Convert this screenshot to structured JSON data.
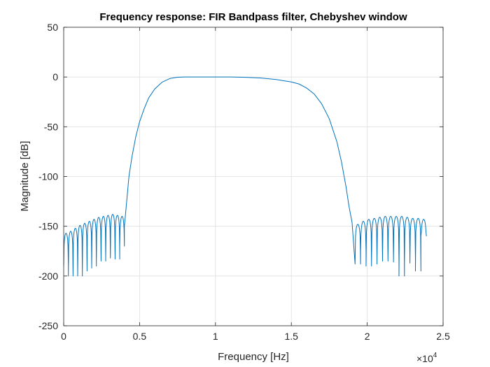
{
  "chart_data": {
    "type": "line",
    "title": "Frequency response: FIR Bandpass filter, Chebyshev window",
    "xlabel": "Frequency [Hz]",
    "ylabel": "Magnitude [dB]",
    "xlim": [
      0,
      25000
    ],
    "ylim": [
      -250,
      50
    ],
    "x_multiplier_label": "×10",
    "x_multiplier_exp": "4",
    "x_ticks": [
      0,
      5000,
      10000,
      15000,
      20000,
      25000
    ],
    "x_tick_labels": [
      "0",
      "0.5",
      "1",
      "1.5",
      "2",
      "2.5"
    ],
    "y_ticks": [
      50,
      0,
      -50,
      -100,
      -150,
      -200,
      -250
    ],
    "y_tick_labels": [
      "50",
      "0",
      "-50",
      "-100",
      "-150",
      "-200",
      "-250"
    ],
    "grid": true,
    "series": [
      {
        "color": "#0072BD",
        "passband": [
          [
            4000,
            -150
          ],
          [
            4150,
            -125
          ],
          [
            4300,
            -100
          ],
          [
            4500,
            -80
          ],
          [
            4750,
            -60
          ],
          [
            5000,
            -45
          ],
          [
            5300,
            -32
          ],
          [
            5600,
            -21
          ],
          [
            6000,
            -12
          ],
          [
            6500,
            -5
          ],
          [
            7000,
            -1.5
          ],
          [
            7500,
            -0.2
          ],
          [
            8000,
            0
          ],
          [
            9000,
            0
          ],
          [
            10000,
            0
          ],
          [
            11000,
            0
          ],
          [
            12000,
            -0.3
          ],
          [
            13000,
            -1
          ],
          [
            14000,
            -2.5
          ],
          [
            15000,
            -5
          ],
          [
            15500,
            -7
          ],
          [
            16000,
            -11
          ],
          [
            16500,
            -17
          ],
          [
            17000,
            -27
          ],
          [
            17500,
            -42
          ],
          [
            18000,
            -65
          ],
          [
            18300,
            -85
          ],
          [
            18600,
            -110
          ],
          [
            18800,
            -130
          ],
          [
            19000,
            -146
          ]
        ],
        "left_stopband": {
          "x_start": 0,
          "x_end": 4000,
          "lobes": [
            {
              "peak": -157,
              "null": -190
            },
            {
              "peak": -155,
              "null": -200
            },
            {
              "peak": -152,
              "null": -199
            },
            {
              "peak": -149,
              "null": -200
            },
            {
              "peak": -147,
              "null": -195
            },
            {
              "peak": -145,
              "null": -192
            },
            {
              "peak": -143,
              "null": -190
            },
            {
              "peak": -141,
              "null": -185
            },
            {
              "peak": -140,
              "null": -185
            },
            {
              "peak": -139,
              "null": -182
            },
            {
              "peak": -138,
              "null": -182
            },
            {
              "peak": -139,
              "null": -183
            },
            {
              "peak": -140,
              "null": -170
            }
          ]
        },
        "right_stopband": {
          "x_start": 19200,
          "x_end": 23900,
          "lobes": [
            {
              "peak": -148,
              "null": -188
            },
            {
              "peak": -145,
              "null": -175
            },
            {
              "peak": -143,
              "null": -190
            },
            {
              "peak": -142,
              "null": -188
            },
            {
              "peak": -141,
              "null": -183
            },
            {
              "peak": -140,
              "null": -185
            },
            {
              "peak": -140,
              "null": -182
            },
            {
              "peak": -140,
              "null": -186
            },
            {
              "peak": -140,
              "null": -200
            },
            {
              "peak": -141,
              "null": -187
            },
            {
              "peak": -142,
              "null": -183
            },
            {
              "peak": -142,
              "null": -195
            },
            {
              "peak": -143,
              "null": -160
            }
          ]
        }
      }
    ]
  }
}
